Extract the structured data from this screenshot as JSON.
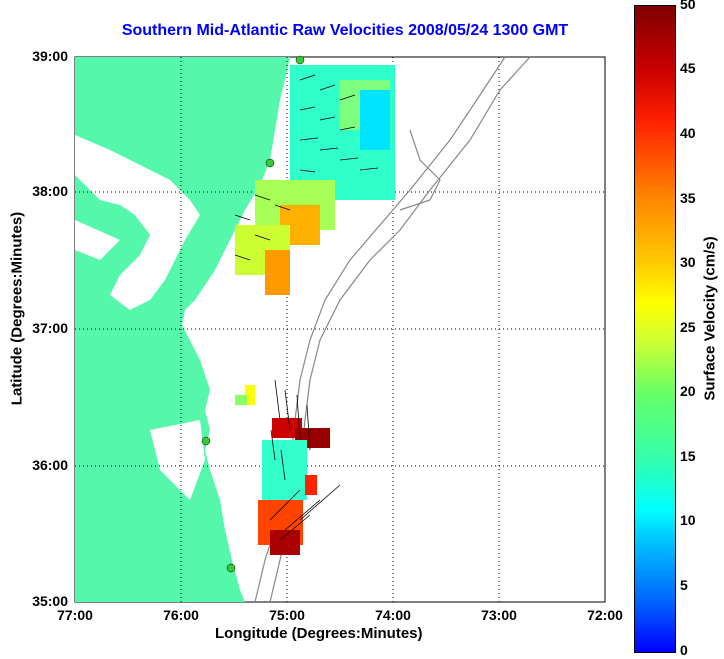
{
  "title": "Southern Mid-Atlantic Raw Velocities 2008/05/24 1300 GMT",
  "xlabel": "Longitude (Degrees:Minutes)",
  "ylabel": "Latitude (Degrees:Minutes)",
  "x_ticks": [
    "77:00",
    "76:00",
    "75:00",
    "74:00",
    "73:00",
    "72:00"
  ],
  "y_ticks": [
    "39:00",
    "38:00",
    "37:00",
    "36:00",
    "35:00"
  ],
  "colorbar": {
    "label": "Surface Velocity (cm/s)",
    "ticks": [
      "50",
      "45",
      "40",
      "35",
      "30",
      "25",
      "20",
      "15",
      "10",
      "5",
      "0"
    ],
    "range": [
      0,
      50
    ]
  },
  "colors": {
    "land": "#55f7aa",
    "title": "#0000ff",
    "contour": "#888888"
  }
}
